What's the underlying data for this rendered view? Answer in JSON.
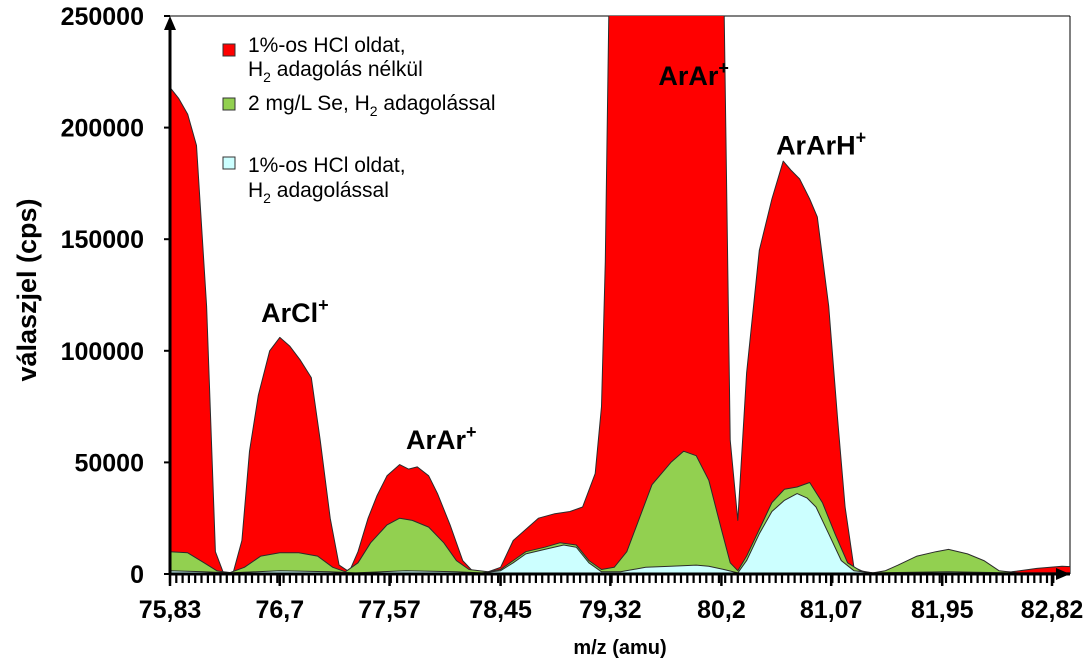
{
  "chart_data": {
    "type": "area",
    "xlabel": "m/z (amu)",
    "ylabel": "válaszjel (cps)",
    "ylim": [
      0,
      250000
    ],
    "xlim": [
      75.83,
      83.3
    ],
    "yticks": [
      0,
      50000,
      100000,
      150000,
      200000,
      250000
    ],
    "ytick_labels": [
      "0",
      "50000",
      "100000",
      "150000",
      "200000",
      "250000"
    ],
    "xticks": [
      75.83,
      76.7,
      77.57,
      78.45,
      79.32,
      80.2,
      81.07,
      81.95,
      82.82
    ],
    "xtick_labels": [
      "75,83",
      "76,7",
      "77,57",
      "78,45",
      "79,32",
      "80,2",
      "81,07",
      "81,95",
      "82,82"
    ],
    "grid": false,
    "legend_position": "top-left",
    "legend": [
      {
        "line1": "1%-os HCl oldat,",
        "line2_pre": "H",
        "line2_sub": "2",
        "line2_post": " adagolás nélkül"
      },
      {
        "line1_pre": "2 mg/L Se, H",
        "line1_sub": "2",
        "line1_post": " adagolással"
      },
      {
        "line1": "1%-os HCl oldat,",
        "line2_pre": "H",
        "line2_sub": "2",
        "line2_post": " adagolással"
      }
    ],
    "annotations": [
      {
        "text": "ArCl",
        "sup": "+",
        "x": 76.82,
        "y": 113000
      },
      {
        "text": "ArAr",
        "sup": "+",
        "x": 77.98,
        "y": 56000
      },
      {
        "text": "ArAr",
        "sup": "+",
        "x": 79.98,
        "y": 219000
      },
      {
        "text": "ArArH",
        "sup": "+",
        "x": 80.99,
        "y": 188000
      }
    ],
    "series": [
      {
        "name": "1%-os HCl oldat, H2 adagolás nélkül",
        "color": "#ff0000",
        "points": [
          [
            75.83,
            218000
          ],
          [
            75.9,
            213000
          ],
          [
            75.97,
            206000
          ],
          [
            76.04,
            192000
          ],
          [
            76.12,
            120000
          ],
          [
            76.19,
            10000
          ],
          [
            76.25,
            1000
          ],
          [
            76.33,
            500
          ],
          [
            76.4,
            15000
          ],
          [
            76.46,
            55000
          ],
          [
            76.53,
            80000
          ],
          [
            76.62,
            100000
          ],
          [
            76.7,
            106000
          ],
          [
            76.78,
            102000
          ],
          [
            76.86,
            96000
          ],
          [
            76.95,
            88000
          ],
          [
            77.02,
            60000
          ],
          [
            77.1,
            25000
          ],
          [
            77.17,
            4000
          ],
          [
            77.25,
            1000
          ],
          [
            77.32,
            10000
          ],
          [
            77.4,
            25000
          ],
          [
            77.47,
            35000
          ],
          [
            77.55,
            44000
          ],
          [
            77.65,
            49000
          ],
          [
            77.72,
            47000
          ],
          [
            77.79,
            48000
          ],
          [
            77.88,
            44000
          ],
          [
            77.95,
            36000
          ],
          [
            78.05,
            22000
          ],
          [
            78.15,
            6000
          ],
          [
            78.25,
            0
          ],
          [
            78.35,
            1000
          ],
          [
            78.45,
            3000
          ],
          [
            78.55,
            15000
          ],
          [
            78.65,
            20000
          ],
          [
            78.75,
            25000
          ],
          [
            78.88,
            27000
          ],
          [
            79.0,
            28000
          ],
          [
            79.1,
            30000
          ],
          [
            79.2,
            45000
          ],
          [
            79.25,
            75000
          ],
          [
            79.28,
            140000
          ],
          [
            79.31,
            260000
          ],
          [
            80.22,
            260000
          ],
          [
            80.27,
            60000
          ],
          [
            80.33,
            24000
          ],
          [
            80.4,
            90000
          ],
          [
            80.5,
            145000
          ],
          [
            80.6,
            168000
          ],
          [
            80.69,
            185000
          ],
          [
            80.75,
            181000
          ],
          [
            80.82,
            177000
          ],
          [
            80.9,
            168000
          ],
          [
            80.96,
            160000
          ],
          [
            81.05,
            120000
          ],
          [
            81.12,
            70000
          ],
          [
            81.18,
            30000
          ],
          [
            81.25,
            3000
          ],
          [
            81.35,
            500
          ],
          [
            81.45,
            500
          ],
          [
            81.95,
            500
          ],
          [
            82.3,
            500
          ],
          [
            82.5,
            1000
          ],
          [
            82.7,
            2500
          ],
          [
            82.9,
            3500
          ],
          [
            83.05,
            3000
          ],
          [
            83.15,
            2500
          ],
          [
            83.25,
            1500
          ],
          [
            83.3,
            1000
          ]
        ]
      },
      {
        "name": "2 mg/L Se, H2 adagolással",
        "color": "#92d050",
        "points": [
          [
            75.83,
            10000
          ],
          [
            75.97,
            9500
          ],
          [
            76.1,
            5000
          ],
          [
            76.2,
            1500
          ],
          [
            76.3,
            500
          ],
          [
            76.42,
            3000
          ],
          [
            76.55,
            8000
          ],
          [
            76.7,
            9500
          ],
          [
            76.85,
            9500
          ],
          [
            77.0,
            8000
          ],
          [
            77.12,
            3000
          ],
          [
            77.22,
            1000
          ],
          [
            77.32,
            5000
          ],
          [
            77.42,
            14000
          ],
          [
            77.55,
            22000
          ],
          [
            77.65,
            25000
          ],
          [
            77.75,
            24000
          ],
          [
            77.88,
            21000
          ],
          [
            78.0,
            14000
          ],
          [
            78.1,
            6000
          ],
          [
            78.2,
            2000
          ],
          [
            78.35,
            1000
          ],
          [
            78.45,
            2000
          ],
          [
            78.55,
            6000
          ],
          [
            78.65,
            10000
          ],
          [
            78.8,
            12000
          ],
          [
            78.92,
            14000
          ],
          [
            79.05,
            13000
          ],
          [
            79.15,
            6000
          ],
          [
            79.25,
            2000
          ],
          [
            79.35,
            3000
          ],
          [
            79.45,
            10000
          ],
          [
            79.55,
            25000
          ],
          [
            79.65,
            40000
          ],
          [
            79.8,
            50000
          ],
          [
            79.9,
            55000
          ],
          [
            80.0,
            53000
          ],
          [
            80.1,
            42000
          ],
          [
            80.2,
            20000
          ],
          [
            80.27,
            5000
          ],
          [
            80.33,
            1500
          ],
          [
            80.4,
            8000
          ],
          [
            80.5,
            20000
          ],
          [
            80.6,
            32000
          ],
          [
            80.7,
            38000
          ],
          [
            80.8,
            39000
          ],
          [
            80.9,
            41000
          ],
          [
            81.0,
            32000
          ],
          [
            81.1,
            18000
          ],
          [
            81.2,
            5000
          ],
          [
            81.3,
            1500
          ],
          [
            81.4,
            500
          ],
          [
            81.5,
            1500
          ],
          [
            81.6,
            4000
          ],
          [
            81.75,
            8000
          ],
          [
            81.9,
            10000
          ],
          [
            82.0,
            11000
          ],
          [
            82.15,
            9000
          ],
          [
            82.28,
            6000
          ],
          [
            82.4,
            1500
          ],
          [
            82.55,
            500
          ],
          [
            83.3,
            500
          ]
        ]
      },
      {
        "name": "1%-os HCl oldat, H2 adagolással",
        "color": "#ccffff",
        "points": [
          [
            75.83,
            1500
          ],
          [
            76.1,
            1000
          ],
          [
            76.3,
            500
          ],
          [
            76.7,
            1500
          ],
          [
            77.1,
            1000
          ],
          [
            77.3,
            500
          ],
          [
            77.7,
            1500
          ],
          [
            78.1,
            1000
          ],
          [
            78.3,
            500
          ],
          [
            78.45,
            1500
          ],
          [
            78.55,
            5000
          ],
          [
            78.65,
            9000
          ],
          [
            78.8,
            11000
          ],
          [
            78.95,
            13000
          ],
          [
            79.05,
            12000
          ],
          [
            79.15,
            5000
          ],
          [
            79.25,
            1000
          ],
          [
            79.4,
            1000
          ],
          [
            79.6,
            3000
          ],
          [
            79.8,
            3500
          ],
          [
            80.0,
            4000
          ],
          [
            80.1,
            3500
          ],
          [
            80.22,
            2000
          ],
          [
            80.33,
            500
          ],
          [
            80.4,
            6000
          ],
          [
            80.5,
            18000
          ],
          [
            80.6,
            28000
          ],
          [
            80.7,
            33000
          ],
          [
            80.8,
            36000
          ],
          [
            80.88,
            34000
          ],
          [
            80.95,
            30000
          ],
          [
            81.05,
            18000
          ],
          [
            81.15,
            6000
          ],
          [
            81.25,
            1500
          ],
          [
            81.4,
            500
          ],
          [
            82.0,
            1000
          ],
          [
            82.5,
            500
          ],
          [
            83.3,
            500
          ]
        ]
      }
    ]
  }
}
